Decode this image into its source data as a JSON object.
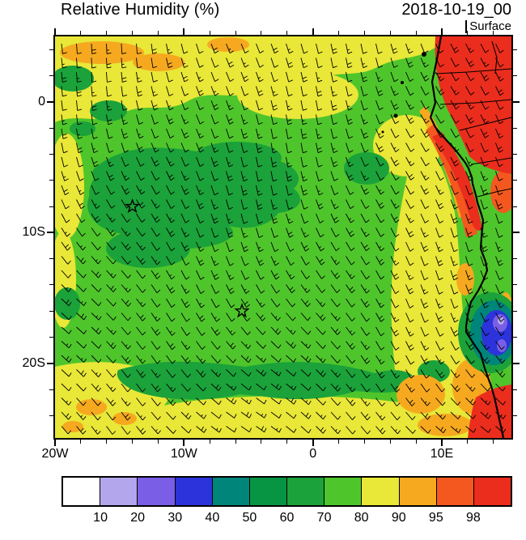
{
  "header": {
    "title": "Relative Humidity (%)",
    "datetime": "2018-10-19_00",
    "level": "Surface"
  },
  "chart_data": {
    "type": "heatmap",
    "variant": "filled contour map with overlaid wind barbs",
    "title": "Relative Humidity (%)",
    "valid_datetime": "2018-10-19_00",
    "level": "Surface",
    "units": "%",
    "proj": {
      "lon_min": -20,
      "lon_max": 15.4,
      "lat_min": -25.7,
      "lat_max": 5
    },
    "x_axis": {
      "major": [
        {
          "deg": -20,
          "label": "20W"
        },
        {
          "deg": -10,
          "label": "10W"
        },
        {
          "deg": 0,
          "label": "0"
        },
        {
          "deg": 10,
          "label": "10E"
        }
      ],
      "minor_step_deg": 2
    },
    "y_axis": {
      "major": [
        {
          "deg": 0,
          "label": "0"
        },
        {
          "deg": -10,
          "label": "10S"
        },
        {
          "deg": -20,
          "label": "20S"
        }
      ],
      "minor_step_deg": 2
    },
    "colorbar": {
      "levels": [
        10,
        20,
        30,
        40,
        50,
        60,
        70,
        80,
        90,
        95,
        98
      ],
      "colors": [
        "#ffffff",
        "#b3a6ec",
        "#7a5fe6",
        "#2c33da",
        "#00857b",
        "#079544",
        "#1ba23a",
        "#4fc52c",
        "#e9e737",
        "#f6a91f",
        "#f4581f",
        "#eb2d1d"
      ]
    },
    "markers": [
      {
        "type": "star",
        "lon": -14,
        "lat": -8
      },
      {
        "type": "star",
        "lon": -5.5,
        "lat": -16
      }
    ],
    "wind_barbs": {
      "description": "surface wind barbs on a regular grid; predominantly south-southeasterly to southeasterly trade winds, roughly 5-10 kt"
    },
    "map_overlays": [
      "African west coastline",
      "country borders over land",
      "small islands (Bioko, Principe, Sao Tome)"
    ],
    "regions": [
      {
        "area": "open South Atlantic, center of domain",
        "rh_percent": "70-80"
      },
      {
        "area": "northern band near the equator, western and southern edges, offshore band along the Angola coast",
        "rh_percent": "80-90"
      },
      {
        "area": "large center-west blob (~15W-2W, 4S-12S), southern band (~18S-21S), small top-left patches",
        "rh_percent": "60-70"
      },
      {
        "area": "equatorial Africa land area in northeast corner",
        "rh_percent": ">98"
      },
      {
        "area": "Gabon-Congo-Angola coastal strip and southeast corner",
        "rh_percent": "95-98"
      },
      {
        "area": "scattered patches near the coast, southeast and northwest corners",
        "rh_percent": "90-95"
      },
      {
        "area": "inland dry spot over southwest Africa (~13E, 16S-19S)",
        "rh_percent": "20-50"
      }
    ]
  }
}
